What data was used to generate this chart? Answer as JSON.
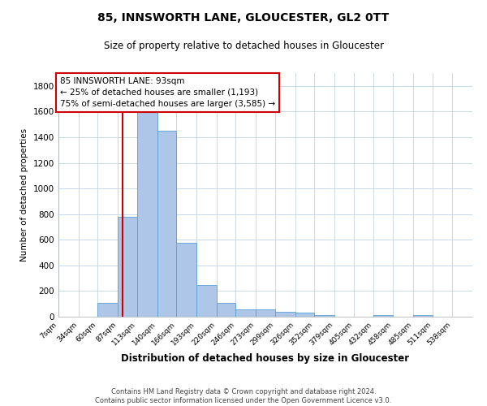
{
  "title": "85, INNSWORTH LANE, GLOUCESTER, GL2 0TT",
  "subtitle": "Size of property relative to detached houses in Gloucester",
  "xlabel": "Distribution of detached houses by size in Gloucester",
  "ylabel": "Number of detached properties",
  "footer1": "Contains HM Land Registry data © Crown copyright and database right 2024.",
  "footer2": "Contains public sector information licensed under the Open Government Licence v3.0.",
  "bar_color": "#aec6e8",
  "bar_edge_color": "#5a9fd4",
  "background_color": "#ffffff",
  "grid_color": "#c8d8ea",
  "annotation_box_color": "#cc0000",
  "red_line_x": 93,
  "annotation_line1": "85 INNSWORTH LANE: 93sqm",
  "annotation_line2": "← 25% of detached houses are smaller (1,193)",
  "annotation_line3": "75% of semi-detached houses are larger (3,585) →",
  "categories": [
    "7sqm",
    "34sqm",
    "60sqm",
    "87sqm",
    "113sqm",
    "140sqm",
    "166sqm",
    "193sqm",
    "220sqm",
    "246sqm",
    "273sqm",
    "299sqm",
    "326sqm",
    "352sqm",
    "379sqm",
    "405sqm",
    "432sqm",
    "458sqm",
    "485sqm",
    "511sqm",
    "538sqm"
  ],
  "bin_edges": [
    7,
    34,
    60,
    87,
    113,
    140,
    166,
    193,
    220,
    246,
    273,
    299,
    326,
    352,
    379,
    405,
    432,
    458,
    485,
    511,
    538,
    565
  ],
  "values": [
    0,
    0,
    110,
    780,
    1620,
    1450,
    575,
    245,
    110,
    60,
    55,
    40,
    30,
    10,
    0,
    0,
    10,
    0,
    10,
    0,
    0
  ],
  "ylim": [
    0,
    1900
  ],
  "yticks": [
    0,
    200,
    400,
    600,
    800,
    1000,
    1200,
    1400,
    1600,
    1800
  ]
}
